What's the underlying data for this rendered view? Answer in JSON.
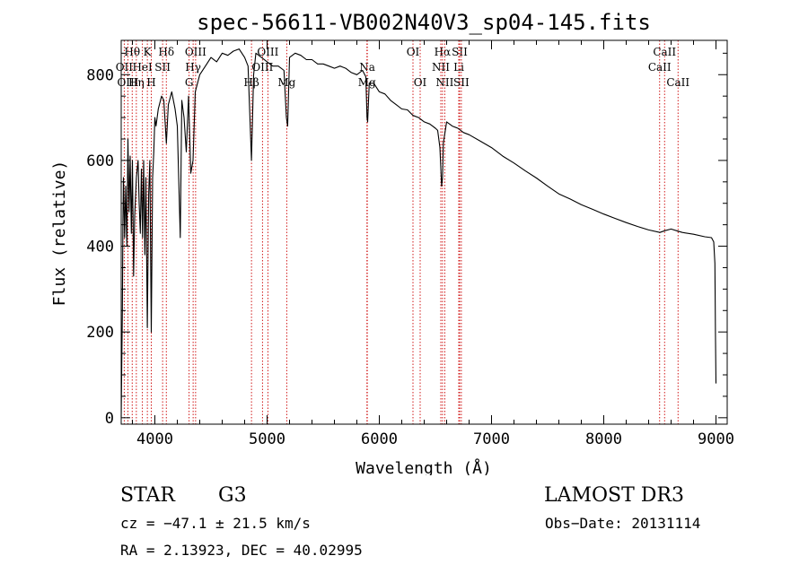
{
  "chart_data": {
    "type": "line",
    "title": "spec-56611-VB002N40V3_sp04-145.fits",
    "xlabel": "Wavelength (Å)",
    "ylabel": "Flux (relative)",
    "xlim": [
      3700,
      9100
    ],
    "ylim": [
      -15,
      880
    ],
    "xticks": [
      4000,
      5000,
      6000,
      7000,
      8000,
      9000
    ],
    "yticks": [
      0,
      200,
      400,
      600,
      800
    ],
    "line_color": "#000000",
    "marker_color": "#cc0000",
    "series": [
      {
        "name": "flux",
        "x": [
          3700,
          3705,
          3710,
          3715,
          3720,
          3725,
          3730,
          3740,
          3750,
          3760,
          3770,
          3780,
          3790,
          3800,
          3810,
          3820,
          3835,
          3850,
          3860,
          3870,
          3880,
          3890,
          3900,
          3910,
          3920,
          3933,
          3945,
          3955,
          3968,
          3980,
          3990,
          4000,
          4010,
          4030,
          4060,
          4080,
          4102,
          4120,
          4150,
          4180,
          4200,
          4226,
          4240,
          4260,
          4280,
          4300,
          4320,
          4340,
          4360,
          4380,
          4400,
          4450,
          4500,
          4550,
          4600,
          4650,
          4700,
          4750,
          4800,
          4830,
          4861,
          4880,
          4900,
          4950,
          5000,
          5050,
          5100,
          5150,
          5172,
          5183,
          5200,
          5250,
          5300,
          5350,
          5400,
          5450,
          5500,
          5550,
          5600,
          5650,
          5700,
          5750,
          5800,
          5850,
          5880,
          5890,
          5896,
          5910,
          5950,
          6000,
          6050,
          6100,
          6150,
          6200,
          6250,
          6300,
          6350,
          6400,
          6450,
          6500,
          6520,
          6540,
          6555,
          6563,
          6570,
          6600,
          6650,
          6700,
          6750,
          6800,
          6900,
          7000,
          7100,
          7200,
          7300,
          7400,
          7500,
          7600,
          7700,
          7800,
          7900,
          8000,
          8100,
          8200,
          8300,
          8400,
          8500,
          8542,
          8600,
          8662,
          8700,
          8800,
          8900,
          8960,
          8980,
          8990,
          8995,
          9000
        ],
        "y": [
          0,
          120,
          250,
          450,
          560,
          500,
          420,
          540,
          400,
          650,
          480,
          610,
          430,
          600,
          330,
          470,
          560,
          600,
          500,
          430,
          580,
          420,
          600,
          380,
          560,
          210,
          520,
          600,
          200,
          560,
          620,
          700,
          680,
          720,
          750,
          740,
          640,
          730,
          760,
          720,
          680,
          420,
          740,
          700,
          620,
          750,
          570,
          600,
          760,
          780,
          800,
          820,
          840,
          830,
          850,
          845,
          855,
          860,
          840,
          820,
          600,
          800,
          850,
          840,
          830,
          820,
          820,
          810,
          700,
          680,
          840,
          850,
          845,
          835,
          835,
          825,
          825,
          820,
          815,
          820,
          815,
          805,
          800,
          810,
          795,
          700,
          690,
          780,
          780,
          760,
          755,
          740,
          730,
          720,
          718,
          705,
          700,
          690,
          685,
          675,
          670,
          630,
          540,
          560,
          640,
          690,
          680,
          675,
          665,
          660,
          645,
          630,
          610,
          594,
          576,
          559,
          540,
          522,
          510,
          497,
          486,
          475,
          465,
          455,
          446,
          438,
          432,
          436,
          440,
          435,
          432,
          428,
          422,
          420,
          410,
          360,
          200,
          80
        ]
      }
    ],
    "line_markers": [
      {
        "label": "Hθ",
        "wavelength": 3798,
        "row": 1
      },
      {
        "label": "K",
        "wavelength": 3933,
        "row": 1
      },
      {
        "label": "Hδ",
        "wavelength": 4102,
        "row": 1
      },
      {
        "label": "OII",
        "wavelength": 3727,
        "row": 2
      },
      {
        "label": "HeI",
        "wavelength": 3889,
        "row": 2
      },
      {
        "label": "SII",
        "wavelength": 4069,
        "row": 2
      },
      {
        "label": "OIII",
        "wavelength": 3760,
        "row": 3
      },
      {
        "label": "Hη",
        "wavelength": 3835,
        "row": 3
      },
      {
        "label": "H",
        "wavelength": 3968,
        "row": 3
      },
      {
        "label": "OIII",
        "wavelength": 4363,
        "row": 1
      },
      {
        "label": "Hγ",
        "wavelength": 4341,
        "row": 2
      },
      {
        "label": "G",
        "wavelength": 4305,
        "row": 3
      },
      {
        "label": "OIII",
        "wavelength": 5007,
        "row": 1
      },
      {
        "label": "OIII",
        "wavelength": 4959,
        "row": 2
      },
      {
        "label": "Hβ",
        "wavelength": 4861,
        "row": 3
      },
      {
        "label": "Mg",
        "wavelength": 5175,
        "row": 3
      },
      {
        "label": "Na",
        "wavelength": 5893,
        "row": 2
      },
      {
        "label": "Mg",
        "wavelength": 5890,
        "row": 3
      },
      {
        "label": "OI",
        "wavelength": 6300,
        "row": 1
      },
      {
        "label": "OI",
        "wavelength": 6364,
        "row": 3
      },
      {
        "label": "Hα",
        "wavelength": 6563,
        "row": 1
      },
      {
        "label": "NII",
        "wavelength": 6548,
        "row": 2
      },
      {
        "label": "NII",
        "wavelength": 6583,
        "row": 3
      },
      {
        "label": "SII",
        "wavelength": 6716,
        "row": 1
      },
      {
        "label": "Li",
        "wavelength": 6708,
        "row": 2
      },
      {
        "label": "SII",
        "wavelength": 6731,
        "row": 3
      },
      {
        "label": "CaII",
        "wavelength": 8542,
        "row": 1
      },
      {
        "label": "CaII",
        "wavelength": 8498,
        "row": 2
      },
      {
        "label": "CaII",
        "wavelength": 8662,
        "row": 3
      }
    ]
  },
  "info": {
    "class_label": "STAR",
    "subclass": "G3",
    "survey": "LAMOST DR3",
    "redshift": "cz = −47.1 ± 21.5 km/s",
    "obs_date": "Obs−Date: 20131114",
    "coords": "RA =   2.13923, DEC =  40.02995"
  }
}
